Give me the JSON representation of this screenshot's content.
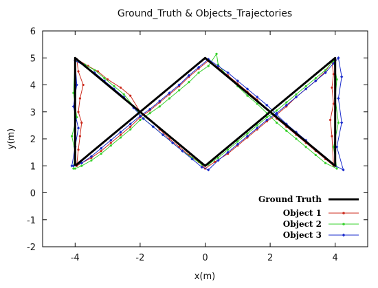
{
  "chart_data": {
    "type": "line",
    "title": "Ground_Truth & Objects_Trajectories",
    "xlabel": "x(m)",
    "ylabel": "y(m)",
    "xlim": [
      -5,
      5
    ],
    "ylim": [
      -2,
      6
    ],
    "xticks": [
      -4,
      -2,
      0,
      2,
      4
    ],
    "yticks": [
      -2,
      -1,
      0,
      1,
      2,
      3,
      4,
      5,
      6
    ],
    "grid": false,
    "legend_position": "bottom-right",
    "series": [
      {
        "name": "Ground Truth",
        "color": "#000000",
        "marker": "none",
        "x": [
          -4,
          -4,
          0,
          4,
          4,
          0,
          -4
        ],
        "y": [
          1,
          5,
          1,
          5,
          1,
          5,
          1
        ]
      },
      {
        "name": "Object 1",
        "color": "#cc2b1d",
        "marker": "dot",
        "x": [
          -3.95,
          -3.9,
          -3.85,
          -3.8,
          -3.9,
          -3.85,
          -3.75,
          -3.9,
          -3.95,
          -3.6,
          -3.3,
          -3.0,
          -2.6,
          -2.3,
          -2.0,
          -1.7,
          -1.4,
          -1.1,
          -0.8,
          -0.5,
          -0.2,
          0.0,
          0.3,
          0.7,
          1.0,
          1.3,
          1.6,
          1.9,
          2.2,
          2.5,
          2.8,
          3.1,
          3.4,
          3.7,
          3.9,
          3.95,
          3.9,
          3.95,
          3.85,
          3.9,
          3.95,
          3.7,
          3.4,
          3.1,
          2.8,
          2.5,
          2.2,
          1.9,
          1.6,
          1.3,
          1.0,
          0.7,
          0.4,
          0.1,
          -0.2,
          -0.5,
          -0.8,
          -1.1,
          -1.4,
          -1.7,
          -2.0,
          -2.3,
          -2.6,
          -2.9,
          -3.2,
          -3.5,
          -3.8,
          -3.95
        ],
        "y": [
          1.05,
          1.6,
          2.1,
          2.6,
          3.0,
          3.5,
          4.0,
          4.5,
          4.95,
          4.7,
          4.5,
          4.2,
          3.9,
          3.6,
          3.0,
          2.7,
          2.35,
          2.0,
          1.7,
          1.4,
          1.15,
          0.9,
          1.15,
          1.45,
          1.75,
          2.05,
          2.35,
          2.65,
          2.9,
          3.2,
          3.55,
          3.85,
          4.15,
          4.5,
          4.85,
          4.4,
          3.9,
          3.3,
          2.7,
          2.1,
          1.0,
          1.25,
          1.55,
          1.85,
          2.15,
          2.45,
          2.75,
          3.1,
          3.45,
          3.75,
          4.05,
          4.35,
          4.65,
          4.9,
          4.6,
          4.3,
          3.95,
          3.65,
          3.35,
          3.05,
          2.8,
          2.45,
          2.15,
          1.85,
          1.55,
          1.3,
          1.1,
          1.0
        ]
      },
      {
        "name": "Object 2",
        "color": "#36d12b",
        "marker": "dot",
        "x": [
          -4.05,
          -4.0,
          -4.1,
          -3.95,
          -4.05,
          -4.0,
          -3.7,
          -3.4,
          -3.1,
          -2.8,
          -2.5,
          -2.2,
          -1.9,
          -1.6,
          -1.3,
          -1.0,
          -0.7,
          -0.4,
          -0.1,
          0.1,
          0.4,
          0.7,
          1.0,
          1.3,
          1.6,
          1.9,
          2.2,
          2.5,
          2.8,
          3.1,
          3.4,
          3.7,
          3.95,
          4.05,
          4.0,
          4.1,
          3.95,
          4.05,
          3.7,
          3.4,
          3.1,
          2.8,
          2.5,
          2.2,
          1.9,
          1.6,
          1.3,
          1.0,
          0.7,
          0.4,
          0.35,
          0.1,
          -0.2,
          -0.5,
          -0.8,
          -1.1,
          -1.4,
          -1.7,
          -2.0,
          -2.3,
          -2.6,
          -2.9,
          -3.2,
          -3.5,
          -3.8,
          -4.0
        ],
        "y": [
          0.9,
          1.5,
          2.1,
          2.8,
          3.7,
          4.9,
          4.75,
          4.55,
          4.25,
          3.95,
          3.65,
          3.2,
          2.75,
          2.45,
          2.15,
          1.85,
          1.55,
          1.3,
          1.05,
          1.05,
          1.3,
          1.6,
          1.9,
          2.2,
          2.5,
          2.8,
          3.05,
          3.35,
          3.65,
          3.95,
          4.25,
          4.55,
          4.9,
          4.2,
          3.5,
          2.6,
          1.7,
          0.9,
          1.1,
          1.4,
          1.7,
          2.0,
          2.3,
          2.6,
          2.95,
          3.3,
          3.6,
          3.95,
          4.3,
          4.75,
          5.15,
          4.7,
          4.45,
          4.1,
          3.8,
          3.5,
          3.2,
          2.95,
          2.7,
          2.35,
          2.05,
          1.75,
          1.45,
          1.2,
          1.0,
          0.9
        ]
      },
      {
        "name": "Object 3",
        "color": "#1a2bcc",
        "marker": "diamond",
        "x": [
          -4.1,
          -4.0,
          -3.9,
          -4.05,
          -3.95,
          -4.0,
          -3.7,
          -3.4,
          -3.1,
          -2.8,
          -2.5,
          -2.2,
          -1.9,
          -1.6,
          -1.3,
          -1.0,
          -0.7,
          -0.4,
          -0.1,
          0.1,
          0.4,
          0.7,
          1.0,
          1.3,
          1.6,
          1.9,
          2.2,
          2.5,
          2.8,
          3.1,
          3.4,
          3.7,
          3.95,
          4.1,
          4.2,
          4.1,
          4.2,
          4.05,
          4.25,
          4.0,
          3.7,
          3.4,
          3.1,
          2.8,
          2.5,
          2.2,
          1.9,
          1.6,
          1.3,
          1.0,
          0.7,
          0.4,
          0.1,
          -0.2,
          -0.5,
          -0.8,
          -1.1,
          -1.4,
          -1.7,
          -2.0,
          -2.3,
          -2.6,
          -2.9,
          -3.2,
          -3.5,
          -3.8,
          -4.05
        ],
        "y": [
          1.0,
          1.7,
          2.4,
          3.2,
          4.0,
          4.9,
          4.7,
          4.45,
          4.15,
          3.85,
          3.55,
          3.15,
          2.75,
          2.45,
          2.15,
          1.85,
          1.55,
          1.25,
          0.95,
          0.85,
          1.2,
          1.5,
          1.8,
          2.1,
          2.4,
          2.7,
          2.95,
          3.25,
          3.55,
          3.85,
          4.15,
          4.45,
          4.8,
          5.0,
          4.3,
          3.5,
          2.6,
          1.7,
          0.85,
          1.0,
          1.3,
          1.6,
          1.95,
          2.25,
          2.55,
          2.9,
          3.25,
          3.55,
          3.85,
          4.15,
          4.45,
          4.7,
          4.95,
          4.65,
          4.35,
          4.0,
          3.7,
          3.4,
          3.1,
          2.85,
          2.55,
          2.25,
          1.95,
          1.65,
          1.35,
          1.1,
          1.0
        ]
      }
    ]
  }
}
